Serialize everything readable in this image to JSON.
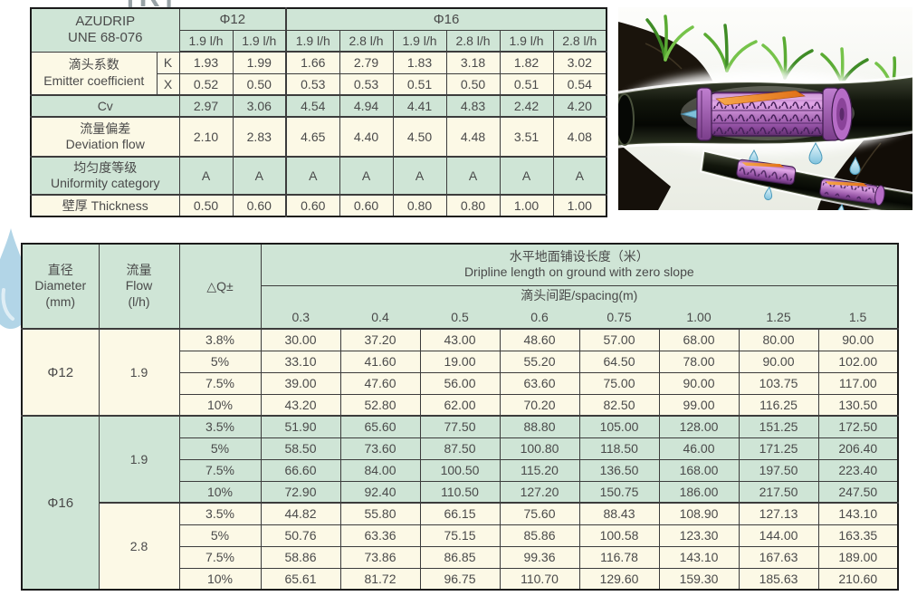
{
  "watermark": {
    "partial_text": "[R]"
  },
  "colors": {
    "green": "#cfe5d6",
    "cream": "#fcf9e6",
    "border": "#3c3c3c",
    "text": "#4a4a4a"
  },
  "top_table": {
    "title_line1": "AZUDRIP",
    "title_line2": "UNE 68-076",
    "phi12": "Φ12",
    "phi16": "Φ16",
    "flow_headers": [
      "1.9 l/h",
      "1.9 l/h",
      "1.9 l/h",
      "2.8 l/h",
      "1.9 l/h",
      "2.8 l/h",
      "1.9 l/h",
      "2.8 l/h"
    ],
    "rows": {
      "k": {
        "label_zh": "滴头系数",
        "label_en": "Emitter  coefficient",
        "sub": "K",
        "values": [
          "1.93",
          "1.99",
          "1.66",
          "2.79",
          "1.83",
          "3.18",
          "1.82",
          "3.02"
        ]
      },
      "x": {
        "sub": "X",
        "values": [
          "0.52",
          "0.50",
          "0.53",
          "0.53",
          "0.51",
          "0.50",
          "0.51",
          "0.54"
        ]
      },
      "cv": {
        "label": "Cv",
        "values": [
          "2.97",
          "3.06",
          "4.54",
          "4.94",
          "4.41",
          "4.83",
          "2.42",
          "4.20"
        ]
      },
      "deviation": {
        "label_zh": "流量偏差",
        "label_en": "Deviation flow",
        "values": [
          "2.10",
          "2.83",
          "4.65",
          "4.40",
          "4.50",
          "4.48",
          "3.51",
          "4.08"
        ]
      },
      "uniformity": {
        "label_zh": "均匀度等级",
        "label_en": "Uniformity category",
        "values": [
          "A",
          "A",
          "A",
          "A",
          "A",
          "A",
          "A",
          "A"
        ]
      },
      "thickness": {
        "label": "壁厚 Thickness",
        "values": [
          "0.50",
          "0.60",
          "0.60",
          "0.60",
          "0.80",
          "0.80",
          "1.00",
          "1.00"
        ]
      }
    }
  },
  "bottom_table": {
    "col_headers": {
      "diameter_zh": "直径",
      "diameter_en": "Diameter",
      "diameter_unit": "(mm)",
      "flow_zh": "流量",
      "flow_en": "Flow",
      "flow_unit": "(l/h)",
      "dq": "△Q±",
      "length_title_zh": "水平地面铺设长度（米）",
      "length_title_en": "Dripline length on ground  with zero slope",
      "spacing_title": "滴头间距/spacing(m)",
      "spacings": [
        "0.3",
        "0.4",
        "0.5",
        "0.6",
        "0.75",
        "1.00",
        "1.25",
        "1.5"
      ]
    },
    "groups": [
      {
        "diameter": "Φ12",
        "tone": "cream",
        "flows": [
          {
            "flow": "1.9",
            "tone": "cream",
            "rows": [
              {
                "dq": "3.8%",
                "values": [
                  "30.00",
                  "37.20",
                  "43.00",
                  "48.60",
                  "57.00",
                  "68.00",
                  "80.00",
                  "90.00"
                ]
              },
              {
                "dq": "5%",
                "values": [
                  "33.10",
                  "41.60",
                  "19.00",
                  "55.20",
                  "64.50",
                  "78.00",
                  "90.00",
                  "102.00"
                ]
              },
              {
                "dq": "7.5%",
                "values": [
                  "39.00",
                  "47.60",
                  "56.00",
                  "63.60",
                  "75.00",
                  "90.00",
                  "103.75",
                  "117.00"
                ]
              },
              {
                "dq": "10%",
                "values": [
                  "43.20",
                  "52.80",
                  "62.00",
                  "70.20",
                  "82.50",
                  "99.00",
                  "116.25",
                  "130.50"
                ]
              }
            ]
          }
        ]
      },
      {
        "diameter": "Φ16",
        "tone": "green",
        "flows": [
          {
            "flow": "1.9",
            "tone": "green",
            "rows": [
              {
                "dq": "3.5%",
                "values": [
                  "51.90",
                  "65.60",
                  "77.50",
                  "88.80",
                  "105.00",
                  "128.00",
                  "151.25",
                  "172.50"
                ]
              },
              {
                "dq": "5%",
                "values": [
                  "58.50",
                  "73.60",
                  "87.50",
                  "100.80",
                  "118.50",
                  "46.00",
                  "171.25",
                  "206.40"
                ]
              },
              {
                "dq": "7.5%",
                "values": [
                  "66.60",
                  "84.00",
                  "100.50",
                  "115.20",
                  "136.50",
                  "168.00",
                  "197.50",
                  "223.40"
                ]
              },
              {
                "dq": "10%",
                "values": [
                  "72.90",
                  "92.40",
                  "110.50",
                  "127.20",
                  "150.75",
                  "186.00",
                  "217.50",
                  "247.50"
                ]
              }
            ]
          },
          {
            "flow": "2.8",
            "tone": "cream",
            "rows": [
              {
                "dq": "3.5%",
                "values": [
                  "44.82",
                  "55.80",
                  "66.15",
                  "75.60",
                  "88.43",
                  "108.90",
                  "127.13",
                  "143.10"
                ]
              },
              {
                "dq": "5%",
                "values": [
                  "50.76",
                  "63.36",
                  "75.15",
                  "85.86",
                  "100.58",
                  "123.30",
                  "144.00",
                  "163.35"
                ]
              },
              {
                "dq": "7.5%",
                "values": [
                  "58.86",
                  "73.86",
                  "86.85",
                  "99.36",
                  "116.78",
                  "143.10",
                  "167.63",
                  "189.00"
                ]
              },
              {
                "dq": "10%",
                "values": [
                  "65.61",
                  "81.72",
                  "96.75",
                  "110.70",
                  "129.60",
                  "159.30",
                  "185.63",
                  "210.60"
                ]
              }
            ]
          }
        ]
      }
    ]
  }
}
